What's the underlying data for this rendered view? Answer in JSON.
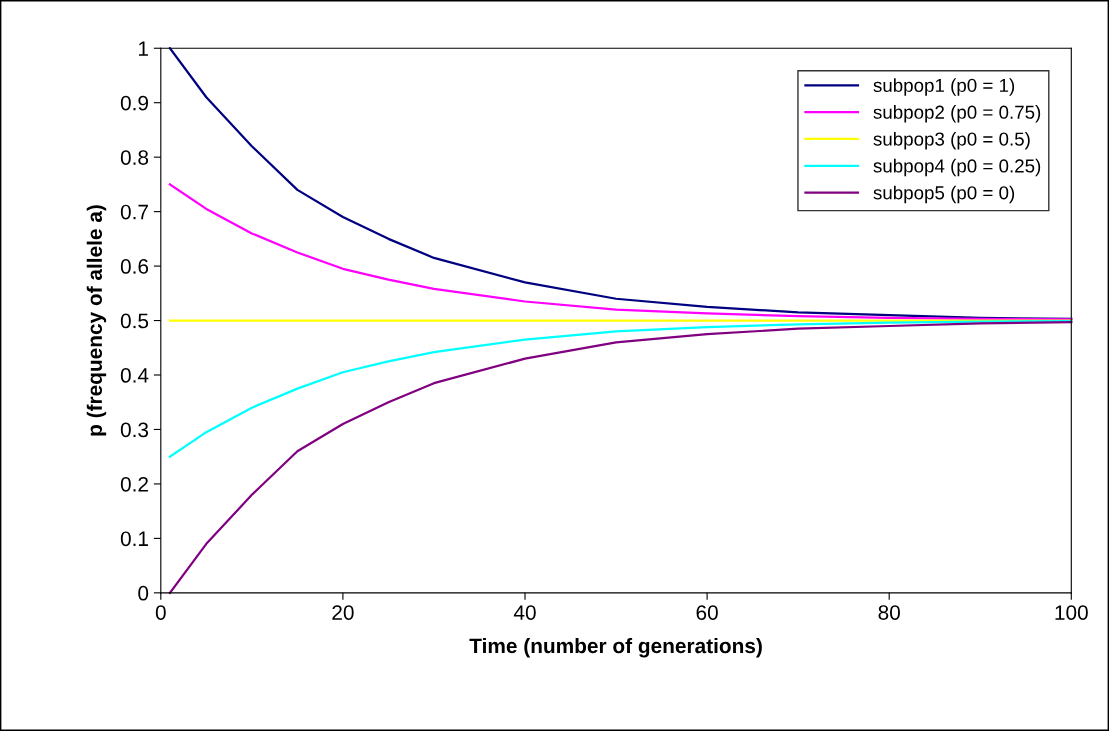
{
  "chart_data": {
    "type": "line",
    "xlabel": "Time (number of generations)",
    "ylabel": "p (frequency of allele a)",
    "x": [
      1,
      5,
      10,
      15,
      20,
      25,
      30,
      40,
      50,
      60,
      70,
      80,
      90,
      100
    ],
    "series": [
      {
        "name": "subpop1 (p0 = 1)",
        "color": "#000080",
        "values": [
          1.0,
          0.91,
          0.82,
          0.74,
          0.69,
          0.65,
          0.615,
          0.57,
          0.54,
          0.525,
          0.515,
          0.51,
          0.505,
          0.503
        ]
      },
      {
        "name": "subpop2 (p0 = 0.75)",
        "color": "#ff00ff",
        "values": [
          0.75,
          0.705,
          0.66,
          0.625,
          0.595,
          0.575,
          0.558,
          0.535,
          0.52,
          0.513,
          0.508,
          0.505,
          0.503,
          0.502
        ]
      },
      {
        "name": "subpop3 (p0 = 0.5)",
        "color": "#ffff00",
        "values": [
          0.5,
          0.5,
          0.5,
          0.5,
          0.5,
          0.5,
          0.5,
          0.5,
          0.5,
          0.5,
          0.5,
          0.5,
          0.5,
          0.5
        ]
      },
      {
        "name": "subpop4 (p0 = 0.25)",
        "color": "#00ffff",
        "values": [
          0.25,
          0.295,
          0.34,
          0.375,
          0.405,
          0.425,
          0.442,
          0.465,
          0.48,
          0.488,
          0.493,
          0.496,
          0.498,
          0.499
        ]
      },
      {
        "name": "subpop5 (p0 = 0)",
        "color": "#800080",
        "values": [
          0.0,
          0.09,
          0.18,
          0.26,
          0.31,
          0.35,
          0.385,
          0.43,
          0.46,
          0.475,
          0.485,
          0.49,
          0.495,
          0.497
        ]
      }
    ],
    "xlim": [
      0,
      100
    ],
    "xticks": [
      0,
      20,
      40,
      60,
      80,
      100
    ],
    "ylim": [
      0,
      1
    ],
    "yticks": [
      0,
      0.1,
      0.2,
      0.3,
      0.4,
      0.5,
      0.6,
      0.7,
      0.8,
      0.9,
      1
    ],
    "grid": false,
    "legend": "top right",
    "marker": "none",
    "line_style": "solid"
  }
}
